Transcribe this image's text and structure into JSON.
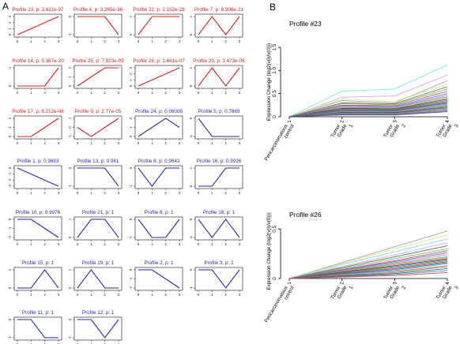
{
  "panel_labels": {
    "a": "A",
    "b": "B"
  },
  "colors": {
    "significant": "#d42020",
    "nonsignificant": "#2a2aa8",
    "axis": "#000000"
  },
  "chart_data": [
    {
      "type": "line",
      "panel": "A",
      "title": "",
      "x_ticks": [
        "0",
        "1",
        "2",
        "3"
      ],
      "profiles": [
        {
          "title": "Profile 23, p: 3.611e-37",
          "values": [
            0,
            1,
            2,
            3
          ],
          "significant": true,
          "y_ticks": [
            "0",
            "1",
            "2",
            "3"
          ]
        },
        {
          "title": "Profile 4, p: 3.265e-36",
          "values": [
            0,
            0,
            0,
            -1
          ],
          "significant": true,
          "y_ticks": [
            "0",
            "-1"
          ]
        },
        {
          "title": "Profile 22, p: 2.152e-28",
          "values": [
            0,
            1,
            1,
            1
          ],
          "significant": true,
          "y_ticks": [
            "0",
            "1"
          ]
        },
        {
          "title": "Profile 7, p: 9.906e-21",
          "values": [
            0,
            1,
            0,
            1
          ],
          "significant": true,
          "y_ticks": [
            "0",
            "1"
          ]
        },
        {
          "title": "Profile 14, p: 5.367e-20",
          "values": [
            0,
            0,
            0,
            1
          ],
          "significant": true,
          "y_ticks": [
            "0",
            "1"
          ]
        },
        {
          "title": "Profile 25, p: 7.023e-09",
          "values": [
            0,
            1,
            2,
            2
          ],
          "significant": true,
          "y_ticks": [
            "0",
            "1",
            "2"
          ]
        },
        {
          "title": "Profile 26, p: 1.661e-07",
          "values": [
            0,
            1,
            2,
            3
          ],
          "significant": true,
          "y_ticks": [
            "0",
            "1",
            "2",
            "3"
          ]
        },
        {
          "title": "Profile 20, p: 3.473e-06",
          "values": [
            0,
            1,
            0,
            1
          ],
          "significant": true,
          "y_ticks": [
            "0",
            "1"
          ]
        },
        {
          "title": "Profile 17, p: 6.212e-06",
          "values": [
            0,
            0,
            1,
            2
          ],
          "significant": true,
          "y_ticks": [
            "0",
            "1",
            "2"
          ]
        },
        {
          "title": "Profile 9, p: 2.77e-05",
          "values": [
            0,
            -1,
            0,
            1
          ],
          "significant": true,
          "y_ticks": [
            "-1",
            "0",
            "1"
          ]
        },
        {
          "title": "Profile 24, p: 0.06006",
          "values": [
            0,
            1,
            2,
            1
          ],
          "significant": false,
          "y_ticks": [
            "0",
            "1",
            "2"
          ]
        },
        {
          "title": "Profile 5, p: 0.7869",
          "values": [
            0,
            -1,
            -1,
            -1
          ],
          "significant": false,
          "y_ticks": [
            "0",
            "-1"
          ]
        },
        {
          "title": "Profile 1, p: 0.9683",
          "values": [
            0,
            -1,
            -2,
            -3
          ],
          "significant": false,
          "y_ticks": [
            "0",
            "-1",
            "-2",
            "-3"
          ]
        },
        {
          "title": "Profile 13, p: 0.981",
          "values": [
            0,
            0,
            0,
            -1
          ],
          "significant": false,
          "y_ticks": [
            "0",
            "-1"
          ]
        },
        {
          "title": "Profile 8, p: 0.9843",
          "values": [
            0,
            -1,
            0,
            0
          ],
          "significant": false,
          "y_ticks": [
            "0",
            "-1"
          ]
        },
        {
          "title": "Profile 16, p: 0.9926",
          "values": [
            0,
            0,
            1,
            1
          ],
          "significant": false,
          "y_ticks": [
            "0",
            "1"
          ]
        },
        {
          "title": "Profile 10, p: 0.9976",
          "values": [
            0,
            0,
            -1,
            -2
          ],
          "significant": false,
          "y_ticks": [
            "0",
            "-1",
            "-2"
          ]
        },
        {
          "title": "Profile 21, p: 1",
          "values": [
            0,
            1,
            1,
            0
          ],
          "significant": false,
          "y_ticks": [
            "0",
            "1"
          ]
        },
        {
          "title": "Profile 6, p: 1",
          "values": [
            0,
            -1,
            -1,
            0
          ],
          "significant": false,
          "y_ticks": [
            "0",
            "-1"
          ]
        },
        {
          "title": "Profile 18, p: 1",
          "values": [
            0,
            -1,
            0,
            -1
          ],
          "significant": false,
          "y_ticks": [
            "0",
            "-1"
          ]
        },
        {
          "title": "Profile 15, p: 1",
          "values": [
            0,
            0,
            1,
            0
          ],
          "significant": false,
          "y_ticks": [
            "0",
            "1"
          ]
        },
        {
          "title": "Profile 19, p: 1",
          "values": [
            0,
            1,
            0,
            0
          ],
          "significant": false,
          "y_ticks": [
            "0",
            "1"
          ]
        },
        {
          "title": "Profile 2, p: 1",
          "values": [
            0,
            0,
            -1,
            -2
          ],
          "significant": false,
          "y_ticks": [
            "0",
            "-1",
            "-2"
          ]
        },
        {
          "title": "Profile 3, p: 1",
          "values": [
            0,
            0,
            -1,
            0
          ],
          "significant": false,
          "y_ticks": [
            "0",
            "-1"
          ]
        },
        {
          "title": "Profile 11, p: 1",
          "values": [
            0,
            0,
            -1,
            -1
          ],
          "significant": false,
          "y_ticks": [
            "0",
            "-1"
          ]
        },
        {
          "title": "Profile 12, p: 1",
          "values": [
            0,
            0,
            -1,
            0
          ],
          "significant": false,
          "y_ticks": [
            "0",
            "-1"
          ]
        }
      ]
    },
    {
      "type": "line",
      "panel": "B",
      "title": "Profile #23",
      "ylabel": "Expression Change (log2(v(i)/v(0)))",
      "categories": [
        "Pericarcinomatous control",
        "Tumor Grade 1",
        "Tumor Grade 2",
        "Tumor Grade 3"
      ],
      "x_tick_numbers": [
        "1",
        "2",
        "3",
        "4"
      ],
      "y_ticks": [
        "0",
        "0.5",
        "1.0",
        "1.5"
      ],
      "ylim": [
        0,
        1.5
      ],
      "series": [
        {
          "values": [
            0,
            0.55,
            0.6,
            1.12
          ],
          "color": "#6fe0e8"
        },
        {
          "values": [
            0,
            0.42,
            0.45,
            0.9
          ],
          "color": "#c9a0e0"
        },
        {
          "values": [
            0,
            0.35,
            0.3,
            0.78
          ],
          "color": "#9a9a9a"
        },
        {
          "values": [
            0,
            0.38,
            0.33,
            0.7
          ],
          "color": "#e0e070"
        },
        {
          "values": [
            0,
            0.3,
            0.28,
            0.65
          ],
          "color": "#5a5a5a"
        },
        {
          "values": [
            0,
            0.28,
            0.26,
            0.6
          ],
          "color": "#50c050"
        },
        {
          "values": [
            0,
            0.25,
            0.24,
            0.55
          ],
          "color": "#d04040"
        },
        {
          "values": [
            0,
            0.24,
            0.22,
            0.5
          ],
          "color": "#4060d0"
        },
        {
          "values": [
            0,
            0.22,
            0.21,
            0.46
          ],
          "color": "#e070c0"
        },
        {
          "values": [
            0,
            0.2,
            0.2,
            0.43
          ],
          "color": "#20a0a0"
        },
        {
          "values": [
            0,
            0.19,
            0.18,
            0.4
          ],
          "color": "#f0a030"
        },
        {
          "values": [
            0,
            0.18,
            0.17,
            0.38
          ],
          "color": "#303030"
        },
        {
          "values": [
            0,
            0.16,
            0.16,
            0.35
          ],
          "color": "#8040c0"
        },
        {
          "values": [
            0,
            0.15,
            0.15,
            0.33
          ],
          "color": "#30b030"
        },
        {
          "values": [
            0,
            0.14,
            0.14,
            0.31
          ],
          "color": "#c03030"
        },
        {
          "values": [
            0,
            0.13,
            0.13,
            0.29
          ],
          "color": "#3050c0"
        },
        {
          "values": [
            0,
            0.12,
            0.12,
            0.27
          ],
          "color": "#20c0c0"
        },
        {
          "values": [
            0,
            0.11,
            0.11,
            0.25
          ],
          "color": "#d060a0"
        },
        {
          "values": [
            0,
            0.1,
            0.1,
            0.23
          ],
          "color": "#70a030"
        },
        {
          "values": [
            0,
            0.09,
            0.09,
            0.21
          ],
          "color": "#404040"
        },
        {
          "values": [
            0,
            0.08,
            0.08,
            0.19
          ],
          "color": "#2080e0"
        },
        {
          "values": [
            0,
            0.07,
            0.07,
            0.17
          ],
          "color": "#e04040"
        },
        {
          "values": [
            0,
            0.06,
            0.06,
            0.15
          ],
          "color": "#40c060"
        },
        {
          "values": [
            0,
            0.05,
            0.05,
            0.13
          ],
          "color": "#a040a0"
        },
        {
          "values": [
            0,
            0.04,
            0.04,
            0.11
          ],
          "color": "#2040a0"
        }
      ]
    },
    {
      "type": "line",
      "panel": "B",
      "title": "Profile #26",
      "ylabel": "Expression Change (log2(v(i)/v(0)))",
      "categories": [
        "Pericarcinomatous control",
        "Tumor Grade 1",
        "Tumor Grade 2",
        "Tumor Grade 3"
      ],
      "x_tick_numbers": [
        "1",
        "2",
        "3",
        "4"
      ],
      "y_ticks": [
        "0",
        "0.5"
      ],
      "ylim": [
        0,
        0.55
      ],
      "series": [
        {
          "values": [
            0,
            0.16,
            0.32,
            0.48
          ],
          "color": "#9a9a9a"
        },
        {
          "values": [
            0,
            0.15,
            0.3,
            0.44
          ],
          "color": "#e0e070"
        },
        {
          "values": [
            0,
            0.14,
            0.27,
            0.4
          ],
          "color": "#6fe0e8"
        },
        {
          "values": [
            0,
            0.12,
            0.24,
            0.36
          ],
          "color": "#c9a0e0"
        },
        {
          "values": [
            0,
            0.11,
            0.22,
            0.33
          ],
          "color": "#5a5a5a"
        },
        {
          "values": [
            0,
            0.1,
            0.2,
            0.3
          ],
          "color": "#50c050"
        },
        {
          "values": [
            0,
            0.09,
            0.18,
            0.28
          ],
          "color": "#d04040"
        },
        {
          "values": [
            0,
            0.085,
            0.17,
            0.26
          ],
          "color": "#4060d0"
        },
        {
          "values": [
            0,
            0.08,
            0.16,
            0.24
          ],
          "color": "#e070c0"
        },
        {
          "values": [
            0,
            0.075,
            0.15,
            0.22
          ],
          "color": "#20a0a0"
        },
        {
          "values": [
            0,
            0.07,
            0.14,
            0.21
          ],
          "color": "#f0a030"
        },
        {
          "values": [
            0,
            0.065,
            0.13,
            0.2
          ],
          "color": "#303030"
        },
        {
          "values": [
            0,
            0.06,
            0.12,
            0.19
          ],
          "color": "#8040c0"
        },
        {
          "values": [
            0,
            0.055,
            0.11,
            0.18
          ],
          "color": "#30b030"
        },
        {
          "values": [
            0,
            0.05,
            0.1,
            0.17
          ],
          "color": "#c03030"
        },
        {
          "values": [
            0,
            0.045,
            0.09,
            0.16
          ],
          "color": "#3050c0"
        },
        {
          "values": [
            0,
            0.04,
            0.08,
            0.15
          ],
          "color": "#20c0c0"
        },
        {
          "values": [
            0,
            0.035,
            0.07,
            0.13
          ],
          "color": "#d060a0"
        },
        {
          "values": [
            0,
            0.03,
            0.06,
            0.12
          ],
          "color": "#70a030"
        },
        {
          "values": [
            0,
            0.025,
            0.05,
            0.1
          ],
          "color": "#404040"
        },
        {
          "values": [
            0,
            0.02,
            0.04,
            0.08
          ],
          "color": "#2080e0"
        },
        {
          "values": [
            0,
            0.015,
            0.03,
            0.06
          ],
          "color": "#e04040"
        }
      ]
    }
  ]
}
